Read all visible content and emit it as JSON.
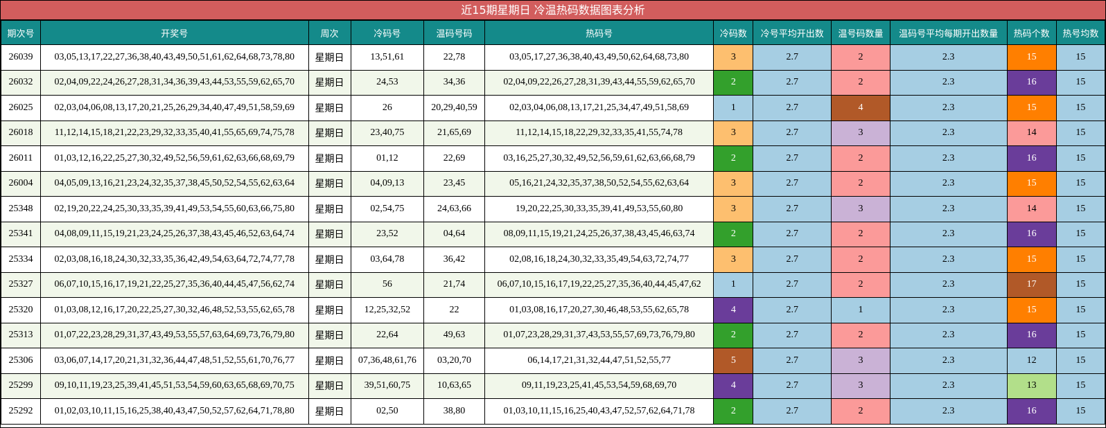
{
  "title": "近15期星期日 冷温热码数据图表分析",
  "colors": {
    "title_bg": "#d25d5d",
    "header_bg": "#148a8a",
    "row_alt_bg": "#f1f7ea",
    "stat_blue": "#a6cee3",
    "orange_light": "#fdbf6f",
    "orange": "#ff7f00",
    "green": "#33a02c",
    "light_green": "#b2df8a",
    "pink": "#fb9a99",
    "lavender": "#cab2d6",
    "purple": "#6a3d9a",
    "brown": "#b15928"
  },
  "chart_data": {
    "type": "table",
    "title": "近15期星期日 冷温热码数据图表分析",
    "columns": [
      "期次号",
      "开奖号",
      "周次",
      "冷码号",
      "温码号码",
      "热码号",
      "冷码数",
      "冷号平均开出数",
      "温号码数量",
      "温码号平均每期开出数量",
      "热码个数",
      "热号均数"
    ],
    "rows": [
      {
        "issue": "26039",
        "draw": "03,05,13,17,22,27,36,38,40,43,49,50,51,61,62,64,68,73,78,80",
        "week": "星期日",
        "cold": "13,51,61",
        "warm": "22,78",
        "hot": "03,05,17,27,36,38,40,43,49,50,62,64,68,73,80",
        "cold_count": 3,
        "cold_avg": 2.7,
        "warm_count": 2,
        "warm_avg": 2.3,
        "hot_count": 15,
        "hot_avg": 15
      },
      {
        "issue": "26032",
        "draw": "02,04,09,22,24,26,27,28,31,34,36,39,43,44,53,55,59,62,65,70",
        "week": "星期日",
        "cold": "24,53",
        "warm": "34,36",
        "hot": "02,04,09,22,26,27,28,31,39,43,44,55,59,62,65,70",
        "cold_count": 2,
        "cold_avg": 2.7,
        "warm_count": 2,
        "warm_avg": 2.3,
        "hot_count": 16,
        "hot_avg": 15
      },
      {
        "issue": "26025",
        "draw": "02,03,04,06,08,13,17,20,21,25,26,29,34,40,47,49,51,58,59,69",
        "week": "星期日",
        "cold": "26",
        "warm": "20,29,40,59",
        "hot": "02,03,04,06,08,13,17,21,25,34,47,49,51,58,69",
        "cold_count": 1,
        "cold_avg": 2.7,
        "warm_count": 4,
        "warm_avg": 2.3,
        "hot_count": 15,
        "hot_avg": 15
      },
      {
        "issue": "26018",
        "draw": "11,12,14,15,18,21,22,23,29,32,33,35,40,41,55,65,69,74,75,78",
        "week": "星期日",
        "cold": "23,40,75",
        "warm": "21,65,69",
        "hot": "11,12,14,15,18,22,29,32,33,35,41,55,74,78",
        "cold_count": 3,
        "cold_avg": 2.7,
        "warm_count": 3,
        "warm_avg": 2.3,
        "hot_count": 14,
        "hot_avg": 15
      },
      {
        "issue": "26011",
        "draw": "01,03,12,16,22,25,27,30,32,49,52,56,59,61,62,63,66,68,69,79",
        "week": "星期日",
        "cold": "01,12",
        "warm": "22,69",
        "hot": "03,16,25,27,30,32,49,52,56,59,61,62,63,66,68,79",
        "cold_count": 2,
        "cold_avg": 2.7,
        "warm_count": 2,
        "warm_avg": 2.3,
        "hot_count": 16,
        "hot_avg": 15
      },
      {
        "issue": "26004",
        "draw": "04,05,09,13,16,21,23,24,32,35,37,38,45,50,52,54,55,62,63,64",
        "week": "星期日",
        "cold": "04,09,13",
        "warm": "23,45",
        "hot": "05,16,21,24,32,35,37,38,50,52,54,55,62,63,64",
        "cold_count": 3,
        "cold_avg": 2.7,
        "warm_count": 2,
        "warm_avg": 2.3,
        "hot_count": 15,
        "hot_avg": 15
      },
      {
        "issue": "25348",
        "draw": "02,19,20,22,24,25,30,33,35,39,41,49,53,54,55,60,63,66,75,80",
        "week": "星期日",
        "cold": "02,54,75",
        "warm": "24,63,66",
        "hot": "19,20,22,25,30,33,35,39,41,49,53,55,60,80",
        "cold_count": 3,
        "cold_avg": 2.7,
        "warm_count": 3,
        "warm_avg": 2.3,
        "hot_count": 14,
        "hot_avg": 15
      },
      {
        "issue": "25341",
        "draw": "04,08,09,11,15,19,21,23,24,25,26,37,38,43,45,46,52,63,64,74",
        "week": "星期日",
        "cold": "23,52",
        "warm": "04,64",
        "hot": "08,09,11,15,19,21,24,25,26,37,38,43,45,46,63,74",
        "cold_count": 2,
        "cold_avg": 2.7,
        "warm_count": 2,
        "warm_avg": 2.3,
        "hot_count": 16,
        "hot_avg": 15
      },
      {
        "issue": "25334",
        "draw": "02,03,08,16,18,24,30,32,33,35,36,42,49,54,63,64,72,74,77,78",
        "week": "星期日",
        "cold": "03,64,78",
        "warm": "36,42",
        "hot": "02,08,16,18,24,30,32,33,35,49,54,63,72,74,77",
        "cold_count": 3,
        "cold_avg": 2.7,
        "warm_count": 2,
        "warm_avg": 2.3,
        "hot_count": 15,
        "hot_avg": 15
      },
      {
        "issue": "25327",
        "draw": "06,07,10,15,16,17,19,21,22,25,27,35,36,40,44,45,47,56,62,74",
        "week": "星期日",
        "cold": "56",
        "warm": "21,74",
        "hot": "06,07,10,15,16,17,19,22,25,27,35,36,40,44,45,47,62",
        "cold_count": 1,
        "cold_avg": 2.7,
        "warm_count": 2,
        "warm_avg": 2.3,
        "hot_count": 17,
        "hot_avg": 15
      },
      {
        "issue": "25320",
        "draw": "01,03,08,12,16,17,20,22,25,27,30,32,46,48,52,53,55,62,65,78",
        "week": "星期日",
        "cold": "12,25,32,52",
        "warm": "22",
        "hot": "01,03,08,16,17,20,27,30,46,48,53,55,62,65,78",
        "cold_count": 4,
        "cold_avg": 2.7,
        "warm_count": 1,
        "warm_avg": 2.3,
        "hot_count": 15,
        "hot_avg": 15
      },
      {
        "issue": "25313",
        "draw": "01,07,22,23,28,29,31,37,43,49,53,55,57,63,64,69,73,76,79,80",
        "week": "星期日",
        "cold": "22,64",
        "warm": "49,63",
        "hot": "01,07,23,28,29,31,37,43,53,55,57,69,73,76,79,80",
        "cold_count": 2,
        "cold_avg": 2.7,
        "warm_count": 2,
        "warm_avg": 2.3,
        "hot_count": 16,
        "hot_avg": 15
      },
      {
        "issue": "25306",
        "draw": "03,06,07,14,17,20,21,31,32,36,44,47,48,51,52,55,61,70,76,77",
        "week": "星期日",
        "cold": "07,36,48,61,76",
        "warm": "03,20,70",
        "hot": "06,14,17,21,31,32,44,47,51,52,55,77",
        "cold_count": 5,
        "cold_avg": 2.7,
        "warm_count": 3,
        "warm_avg": 2.3,
        "hot_count": 12,
        "hot_avg": 15
      },
      {
        "issue": "25299",
        "draw": "09,10,11,19,23,25,39,41,45,51,53,54,59,60,63,65,68,69,70,75",
        "week": "星期日",
        "cold": "39,51,60,75",
        "warm": "10,63,65",
        "hot": "09,11,19,23,25,41,45,53,54,59,68,69,70",
        "cold_count": 4,
        "cold_avg": 2.7,
        "warm_count": 3,
        "warm_avg": 2.3,
        "hot_count": 13,
        "hot_avg": 15
      },
      {
        "issue": "25292",
        "draw": "01,02,03,10,11,15,16,25,38,40,43,47,50,52,57,62,64,71,78,80",
        "week": "星期日",
        "cold": "02,50",
        "warm": "38,80",
        "hot": "01,03,10,11,15,16,25,40,43,47,52,57,62,64,71,78",
        "cold_count": 2,
        "cold_avg": 2.7,
        "warm_count": 2,
        "warm_avg": 2.3,
        "hot_count": 16,
        "hot_avg": 15
      }
    ]
  }
}
